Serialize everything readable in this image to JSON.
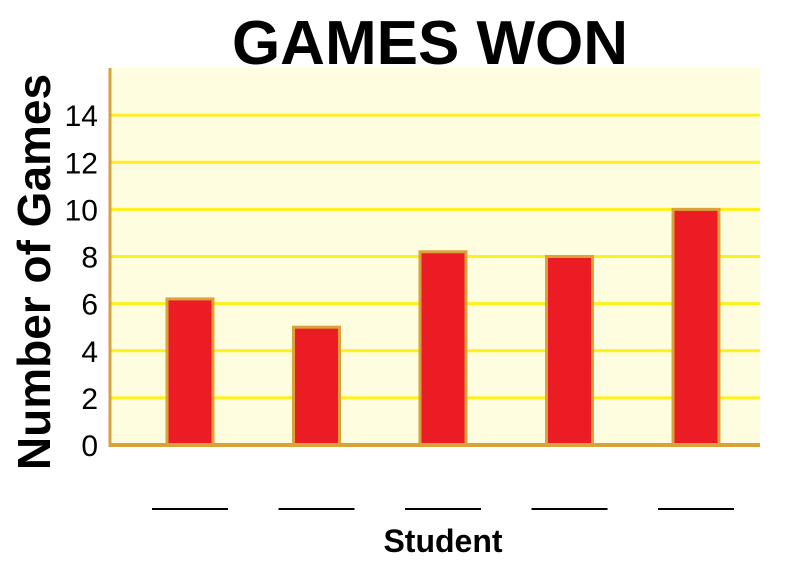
{
  "chart_data": {
    "type": "bar",
    "title": "GAMES WON",
    "xlabel": "Student",
    "ylabel": "Number of Games",
    "categories": [
      "",
      "",
      "",
      "",
      ""
    ],
    "values": [
      6.2,
      5,
      8.2,
      8,
      10
    ],
    "ylim": [
      0,
      16
    ],
    "yticks": [
      "0",
      "2",
      "4",
      "6",
      "8",
      "10",
      "12",
      "14"
    ],
    "grid": true,
    "colors": {
      "plot_background": "#FFFDE0",
      "gridline": "#FFEF1A",
      "axis": "#D9A23A",
      "bar_fill": "#EC1C24",
      "bar_border": "#D9A23A",
      "blank_line": "#000000"
    }
  }
}
